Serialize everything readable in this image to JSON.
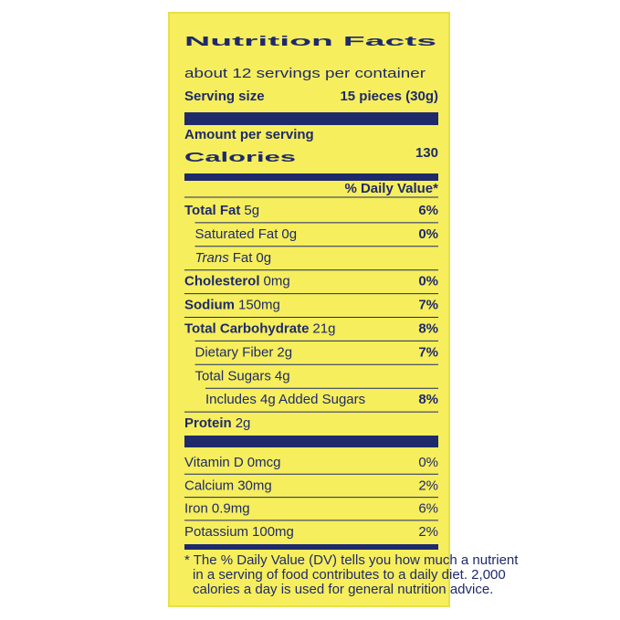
{
  "header": {
    "title": "Nutrition Facts",
    "servings": "about 12 servings per container",
    "serving_size_label": "Serving size",
    "serving_size_value": "15 pieces (30g)"
  },
  "calories": {
    "amount_label": "Amount per serving",
    "label": "Calories",
    "value": "130"
  },
  "dv_header": "% Daily Value*",
  "nutrients": [
    {
      "name": "Total Fat",
      "amount": "5g",
      "dv": "6%",
      "bold": true
    },
    {
      "name": "Saturated Fat",
      "amount": "0g",
      "dv": "0%",
      "sub": 1
    },
    {
      "name_italic": "Trans",
      "name": "Fat",
      "amount": "0g",
      "sub": 1
    },
    {
      "name": "Cholesterol",
      "amount": "0mg",
      "dv": "0%",
      "bold": true
    },
    {
      "name": "Sodium",
      "amount": "150mg",
      "dv": "7%",
      "bold": true
    },
    {
      "name": "Total Carbohydrate",
      "amount": "21g",
      "dv": "8%",
      "bold": true
    },
    {
      "name": "Dietary Fiber",
      "amount": "2g",
      "dv": "7%",
      "sub": 1
    },
    {
      "name": "Total Sugars",
      "amount": "4g",
      "sub": 1
    },
    {
      "name": "Includes 4g Added Sugars",
      "dv": "8%",
      "sub": 2
    },
    {
      "name": "Protein",
      "amount": "2g",
      "bold": true
    }
  ],
  "vitamins": [
    {
      "name": "Vitamin D",
      "amount": "0mcg",
      "dv": "0%"
    },
    {
      "name": "Calcium",
      "amount": "30mg",
      "dv": "2%"
    },
    {
      "name": "Iron",
      "amount": "0.9mg",
      "dv": "6%"
    },
    {
      "name": "Potassium",
      "amount": "100mg",
      "dv": "2%"
    }
  ],
  "footnote": [
    "* The % Daily Value (DV) tells you how much a nutrient",
    "in a serving of food contributes to a daily diet. 2,000",
    "calories a day is used for general nutrition advice."
  ]
}
